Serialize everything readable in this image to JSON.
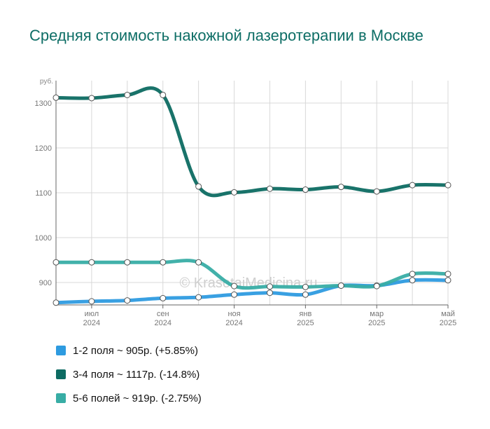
{
  "chart_data": {
    "type": "line",
    "title": "Средняя стоимость накожной лазеротерапии в Москве",
    "y_unit": "руб.",
    "ylim": [
      850,
      1350
    ],
    "yticks": [
      900,
      1000,
      1100,
      1200,
      1300
    ],
    "x": [
      "2024-06",
      "2024-07",
      "2024-08",
      "2024-09",
      "2024-10",
      "2024-11",
      "2024-12",
      "2025-01",
      "2025-02",
      "2025-03",
      "2025-04",
      "2025-05"
    ],
    "xticks": [
      {
        "index": 1,
        "month": "июл",
        "year": "2024"
      },
      {
        "index": 3,
        "month": "сен",
        "year": "2024"
      },
      {
        "index": 5,
        "month": "ноя",
        "year": "2024"
      },
      {
        "index": 7,
        "month": "янв",
        "year": "2025"
      },
      {
        "index": 9,
        "month": "мар",
        "year": "2025"
      },
      {
        "index": 11,
        "month": "май",
        "year": "2025"
      }
    ],
    "grid": true,
    "watermark": "© KrasotaiMedicina.ru",
    "series": [
      {
        "key": "s1",
        "legend": "1-2 поля ~ 905р. (+5.85%)",
        "color": "#2e9be0",
        "values": [
          855,
          858,
          860,
          865,
          867,
          873,
          877,
          873,
          893,
          893,
          905,
          905
        ]
      },
      {
        "key": "s2",
        "legend": "3-4 поля ~ 1117р. (-14.8%)",
        "color": "#0d6b62",
        "values": [
          1312,
          1311,
          1318,
          1318,
          1114,
          1101,
          1109,
          1107,
          1113,
          1103,
          1117,
          1117
        ]
      },
      {
        "key": "s3",
        "legend": "5-6 полей ~ 919р. (-2.75%)",
        "color": "#38ada5",
        "values": [
          945,
          945,
          945,
          945,
          945,
          892,
          891,
          890,
          893,
          892,
          919,
          919
        ]
      }
    ]
  }
}
